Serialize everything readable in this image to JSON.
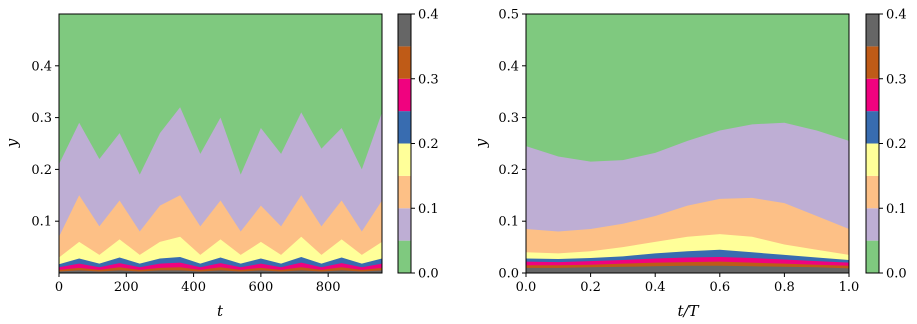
{
  "palette": {
    "levels": [
      0.0,
      0.05,
      0.1,
      0.15,
      0.2,
      0.25,
      0.3,
      0.35,
      0.4
    ],
    "colors": [
      "#7fc97f",
      "#beaed4",
      "#fdc086",
      "#ffff99",
      "#386cb0",
      "#f0027f",
      "#bf5b17",
      "#666666"
    ]
  },
  "chart_data": [
    {
      "type": "area",
      "xlabel": "t",
      "ylabel": "y",
      "xlim": [
        0,
        960
      ],
      "ylim": [
        0,
        0.5
      ],
      "xticks": [
        0,
        200,
        400,
        600,
        800
      ],
      "xtick_labels": [
        "0",
        "200",
        "400",
        "600",
        "800"
      ],
      "yticks": [
        0.1,
        0.2,
        0.3,
        0.4
      ],
      "ytick_labels": [
        "0.1",
        "0.2",
        "0.3",
        "0.4"
      ],
      "colorbar": {
        "ticks": [
          0.0,
          0.1,
          0.2,
          0.3,
          0.4
        ],
        "tick_labels": [
          "0.0",
          "0.1",
          "0.2",
          "0.3",
          "0.4"
        ]
      },
      "x": [
        0,
        60,
        120,
        180,
        240,
        300,
        360,
        420,
        480,
        540,
        600,
        660,
        720,
        780,
        840,
        900,
        960
      ],
      "boundaries": [
        {
          "level": 0.05,
          "values": [
            0.21,
            0.29,
            0.22,
            0.27,
            0.19,
            0.27,
            0.32,
            0.23,
            0.3,
            0.19,
            0.28,
            0.23,
            0.31,
            0.24,
            0.28,
            0.2,
            0.31
          ]
        },
        {
          "level": 0.1,
          "values": [
            0.07,
            0.15,
            0.09,
            0.14,
            0.08,
            0.13,
            0.15,
            0.09,
            0.14,
            0.08,
            0.13,
            0.09,
            0.15,
            0.09,
            0.14,
            0.08,
            0.14
          ]
        },
        {
          "level": 0.15,
          "values": [
            0.03,
            0.06,
            0.035,
            0.065,
            0.035,
            0.06,
            0.07,
            0.035,
            0.065,
            0.035,
            0.06,
            0.035,
            0.07,
            0.035,
            0.065,
            0.035,
            0.06
          ]
        },
        {
          "level": 0.2,
          "values": [
            0.017,
            0.028,
            0.018,
            0.03,
            0.018,
            0.028,
            0.031,
            0.018,
            0.03,
            0.018,
            0.028,
            0.018,
            0.031,
            0.018,
            0.03,
            0.018,
            0.028
          ]
        },
        {
          "level": 0.25,
          "values": [
            0.011,
            0.018,
            0.011,
            0.019,
            0.011,
            0.018,
            0.02,
            0.011,
            0.019,
            0.011,
            0.018,
            0.011,
            0.02,
            0.011,
            0.019,
            0.011,
            0.018
          ]
        },
        {
          "level": 0.3,
          "values": [
            0.006,
            0.01,
            0.006,
            0.011,
            0.006,
            0.01,
            0.011,
            0.006,
            0.011,
            0.006,
            0.01,
            0.006,
            0.011,
            0.006,
            0.011,
            0.006,
            0.01
          ]
        },
        {
          "level": 0.35,
          "values": [
            0.003,
            0.005,
            0.003,
            0.005,
            0.003,
            0.005,
            0.005,
            0.003,
            0.005,
            0.003,
            0.005,
            0.003,
            0.005,
            0.003,
            0.005,
            0.003,
            0.005
          ]
        }
      ]
    },
    {
      "type": "area",
      "xlabel": "t/T",
      "ylabel": "y",
      "xlim": [
        0,
        1.0
      ],
      "ylim": [
        0,
        0.5
      ],
      "xticks": [
        0.0,
        0.2,
        0.4,
        0.6,
        0.8,
        1.0
      ],
      "xtick_labels": [
        "0.0",
        "0.2",
        "0.4",
        "0.6",
        "0.8",
        "1.0"
      ],
      "yticks": [
        0.0,
        0.1,
        0.2,
        0.3,
        0.4,
        0.5
      ],
      "ytick_labels": [
        "0.0",
        "0.1",
        "0.2",
        "0.3",
        "0.4",
        "0.5"
      ],
      "colorbar": {
        "ticks": [
          0.0,
          0.1,
          0.2,
          0.3,
          0.4
        ],
        "tick_labels": [
          "0.0",
          "0.1",
          "0.2",
          "0.3",
          "0.4"
        ]
      },
      "x": [
        0.0,
        0.1,
        0.2,
        0.3,
        0.4,
        0.5,
        0.6,
        0.7,
        0.8,
        0.9,
        1.0
      ],
      "boundaries": [
        {
          "level": 0.05,
          "values": [
            0.245,
            0.225,
            0.215,
            0.218,
            0.232,
            0.255,
            0.275,
            0.287,
            0.29,
            0.275,
            0.255
          ]
        },
        {
          "level": 0.1,
          "values": [
            0.085,
            0.08,
            0.085,
            0.095,
            0.11,
            0.13,
            0.143,
            0.145,
            0.135,
            0.11,
            0.085
          ]
        },
        {
          "level": 0.15,
          "values": [
            0.04,
            0.038,
            0.042,
            0.05,
            0.06,
            0.07,
            0.075,
            0.07,
            0.055,
            0.045,
            0.035
          ]
        },
        {
          "level": 0.2,
          "values": [
            0.028,
            0.027,
            0.029,
            0.032,
            0.038,
            0.042,
            0.045,
            0.04,
            0.035,
            0.03,
            0.025
          ]
        },
        {
          "level": 0.25,
          "values": [
            0.022,
            0.021,
            0.023,
            0.025,
            0.028,
            0.03,
            0.031,
            0.029,
            0.026,
            0.023,
            0.02
          ]
        },
        {
          "level": 0.3,
          "values": [
            0.015,
            0.015,
            0.016,
            0.018,
            0.02,
            0.021,
            0.022,
            0.02,
            0.018,
            0.016,
            0.014
          ]
        },
        {
          "level": 0.35,
          "values": [
            0.01,
            0.01,
            0.011,
            0.012,
            0.013,
            0.014,
            0.014,
            0.013,
            0.012,
            0.011,
            0.009
          ]
        }
      ]
    }
  ]
}
